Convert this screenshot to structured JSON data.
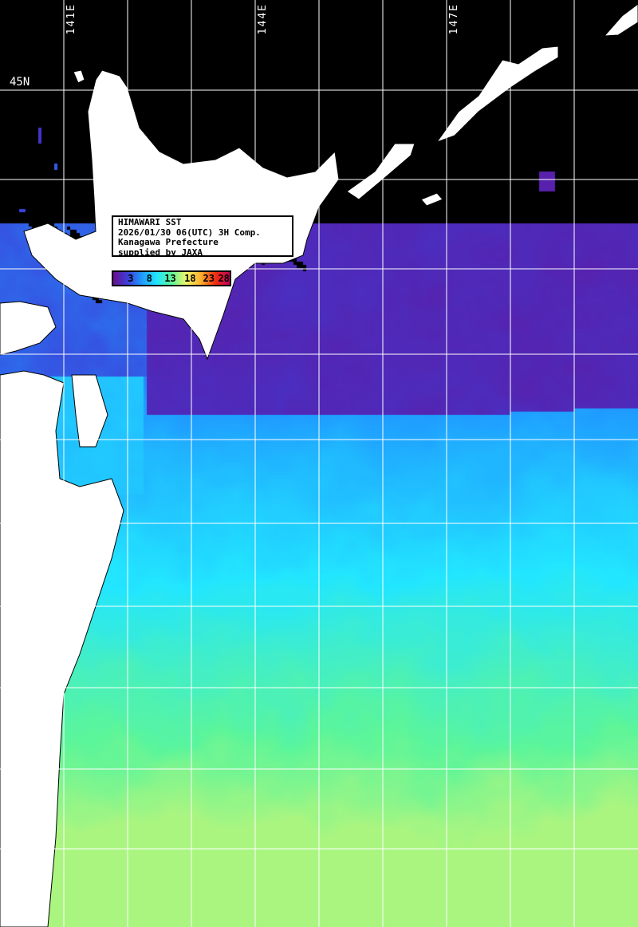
{
  "title_box": {
    "line1": "HIMAWARI SST",
    "line2": "2026/01/30 06(UTC) 3H Comp.",
    "line3": "Kanagawa Prefecture",
    "line4": "supplied by JAXA"
  },
  "colorbar": {
    "ticks": [
      "3",
      "8",
      "13",
      "18",
      "23",
      "28"
    ],
    "unit_range": [
      0,
      30
    ],
    "colors": [
      "#6a0d8f",
      "#3b3fd9",
      "#1f9cff",
      "#22e6ff",
      "#5cf59a",
      "#eef56a",
      "#ffb030",
      "#f03010",
      "#c0005a"
    ]
  },
  "graticule": {
    "longitude_labels": [
      "141E",
      "144E",
      "147E"
    ],
    "latitude_labels": [
      "45N"
    ],
    "grid_color": "#ffffff"
  },
  "colors": {
    "land": "#ffffff",
    "cloud_no_data": "#000000"
  }
}
